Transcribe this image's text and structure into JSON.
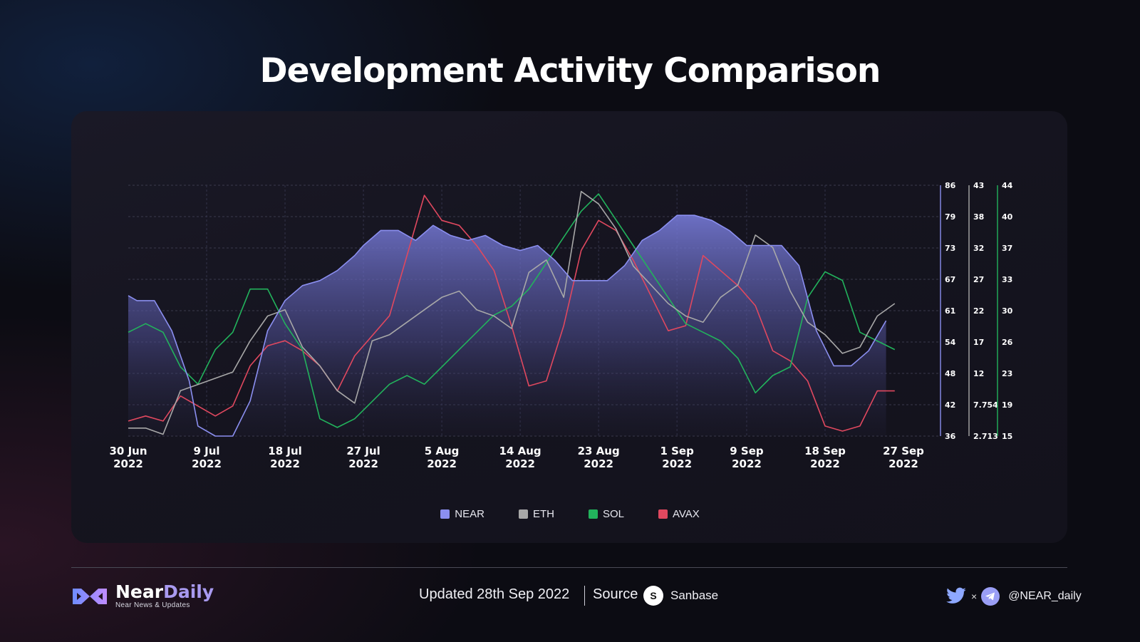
{
  "title": "Development Activity Comparison",
  "legend": [
    {
      "label": "NEAR",
      "color": "#8b8ff0"
    },
    {
      "label": "ETH",
      "color": "#a8a8a8"
    },
    {
      "label": "SOL",
      "color": "#22b35c"
    },
    {
      "label": "AVAX",
      "color": "#e0485f"
    }
  ],
  "chart_data": {
    "type": "line",
    "x_ticks": [
      {
        "date": "2022-06-30",
        "line1": "30 Jun",
        "line2": "2022"
      },
      {
        "date": "2022-07-09",
        "line1": "9 Jul",
        "line2": "2022"
      },
      {
        "date": "2022-07-18",
        "line1": "18 Jul",
        "line2": "2022"
      },
      {
        "date": "2022-07-27",
        "line1": "27 Jul",
        "line2": "2022"
      },
      {
        "date": "2022-08-05",
        "line1": "5 Aug",
        "line2": "2022"
      },
      {
        "date": "2022-08-14",
        "line1": "14 Aug",
        "line2": "2022"
      },
      {
        "date": "2022-08-23",
        "line1": "23 Aug",
        "line2": "2022"
      },
      {
        "date": "2022-09-01",
        "line1": "1 Sep",
        "line2": "2022"
      },
      {
        "date": "2022-09-09",
        "line1": "9 Sep",
        "line2": "2022"
      },
      {
        "date": "2022-09-18",
        "line1": "18 Sep",
        "line2": "2022"
      },
      {
        "date": "2022-09-27",
        "line1": "27 Sep",
        "line2": "2022"
      }
    ],
    "y_axes": [
      {
        "series": "NEAR",
        "ticks": [
          "86",
          "79",
          "73",
          "67",
          "61",
          "54",
          "48",
          "42",
          "36"
        ],
        "ylim": [
          36,
          86
        ]
      },
      {
        "series": "ETH",
        "ticks": [
          "43",
          "38",
          "32",
          "27",
          "22",
          "17",
          "12",
          "7.754",
          "2.713"
        ],
        "ylim": [
          2.713,
          43
        ]
      },
      {
        "series": "SOL",
        "ticks": [
          "44",
          "40",
          "37",
          "33",
          "30",
          "26",
          "23",
          "19",
          "15"
        ],
        "ylim": [
          15,
          44
        ]
      }
    ],
    "series": [
      {
        "name": "NEAR",
        "color": "#8b8ff0",
        "area": true,
        "x": [
          "2022-06-30",
          "2022-07-01",
          "2022-07-03",
          "2022-07-05",
          "2022-07-07",
          "2022-07-08",
          "2022-07-10",
          "2022-07-12",
          "2022-07-14",
          "2022-07-16",
          "2022-07-18",
          "2022-07-20",
          "2022-07-22",
          "2022-07-24",
          "2022-07-26",
          "2022-07-27",
          "2022-07-29",
          "2022-07-31",
          "2022-08-02",
          "2022-08-04",
          "2022-08-06",
          "2022-08-08",
          "2022-08-10",
          "2022-08-12",
          "2022-08-14",
          "2022-08-16",
          "2022-08-18",
          "2022-08-20",
          "2022-08-22",
          "2022-08-24",
          "2022-08-26",
          "2022-08-28",
          "2022-08-30",
          "2022-09-01",
          "2022-09-03",
          "2022-09-05",
          "2022-09-07",
          "2022-09-09",
          "2022-09-11",
          "2022-09-13",
          "2022-09-15",
          "2022-09-17",
          "2022-09-19",
          "2022-09-21",
          "2022-09-23",
          "2022-09-25"
        ],
        "values": [
          64,
          63,
          63,
          57,
          47,
          38,
          36,
          36,
          43,
          57,
          63,
          66,
          67,
          69,
          72,
          74,
          77,
          77,
          75,
          78,
          76,
          75,
          76,
          74,
          73,
          74,
          71,
          67,
          67,
          67,
          70,
          75,
          77,
          80,
          80,
          79,
          77,
          74,
          74,
          74,
          70,
          57,
          50,
          50,
          53,
          59
        ]
      },
      {
        "name": "ETH",
        "color": "#a8a8a8",
        "x": [
          "2022-06-30",
          "2022-07-02",
          "2022-07-04",
          "2022-07-06",
          "2022-07-08",
          "2022-07-10",
          "2022-07-12",
          "2022-07-14",
          "2022-07-16",
          "2022-07-18",
          "2022-07-20",
          "2022-07-22",
          "2022-07-24",
          "2022-07-26",
          "2022-07-28",
          "2022-07-30",
          "2022-08-01",
          "2022-08-03",
          "2022-08-05",
          "2022-08-07",
          "2022-08-09",
          "2022-08-11",
          "2022-08-13",
          "2022-08-15",
          "2022-08-17",
          "2022-08-19",
          "2022-08-21",
          "2022-08-23",
          "2022-08-25",
          "2022-08-27",
          "2022-08-29",
          "2022-08-31",
          "2022-09-02",
          "2022-09-04",
          "2022-09-06",
          "2022-09-08",
          "2022-09-10",
          "2022-09-12",
          "2022-09-14",
          "2022-09-16",
          "2022-09-18",
          "2022-09-20",
          "2022-09-22",
          "2022-09-24",
          "2022-09-26"
        ],
        "values": [
          4,
          4,
          3,
          10,
          11,
          12,
          13,
          18,
          22,
          23,
          17,
          14,
          10,
          8,
          18,
          19,
          21,
          23,
          25,
          26,
          23,
          22,
          20,
          29,
          31,
          25,
          42,
          40,
          36,
          30,
          27,
          24,
          22,
          21,
          25,
          27,
          35,
          33,
          26,
          21,
          19,
          16,
          17,
          22,
          24
        ]
      },
      {
        "name": "SOL",
        "color": "#22b35c",
        "x": [
          "2022-06-30",
          "2022-07-02",
          "2022-07-04",
          "2022-07-06",
          "2022-07-08",
          "2022-07-10",
          "2022-07-12",
          "2022-07-14",
          "2022-07-16",
          "2022-07-18",
          "2022-07-20",
          "2022-07-22",
          "2022-07-24",
          "2022-07-26",
          "2022-07-28",
          "2022-07-30",
          "2022-08-01",
          "2022-08-03",
          "2022-08-05",
          "2022-08-07",
          "2022-08-09",
          "2022-08-11",
          "2022-08-13",
          "2022-08-15",
          "2022-08-17",
          "2022-08-19",
          "2022-08-21",
          "2022-08-23",
          "2022-08-25",
          "2022-08-27",
          "2022-08-29",
          "2022-08-31",
          "2022-09-02",
          "2022-09-04",
          "2022-09-06",
          "2022-09-08",
          "2022-09-10",
          "2022-09-12",
          "2022-09-14",
          "2022-09-16",
          "2022-09-18",
          "2022-09-20",
          "2022-09-22",
          "2022-09-24",
          "2022-09-26"
        ],
        "values": [
          27,
          28,
          27,
          23,
          21,
          25,
          27,
          32,
          32,
          28,
          25,
          17,
          16,
          17,
          19,
          21,
          22,
          21,
          23,
          25,
          27,
          29,
          30,
          32,
          35,
          38,
          41,
          43,
          40,
          37,
          34,
          31,
          28,
          27,
          26,
          24,
          20,
          22,
          23,
          31,
          34,
          33,
          27,
          26,
          25
        ]
      },
      {
        "name": "AVAX",
        "color": "#e0485f",
        "x": [
          "2022-06-30",
          "2022-07-02",
          "2022-07-04",
          "2022-07-06",
          "2022-07-08",
          "2022-07-10",
          "2022-07-12",
          "2022-07-14",
          "2022-07-16",
          "2022-07-18",
          "2022-07-20",
          "2022-07-22",
          "2022-07-24",
          "2022-07-26",
          "2022-07-28",
          "2022-07-30",
          "2022-08-01",
          "2022-08-03",
          "2022-08-05",
          "2022-08-07",
          "2022-08-09",
          "2022-08-11",
          "2022-08-13",
          "2022-08-15",
          "2022-08-17",
          "2022-08-19",
          "2022-08-21",
          "2022-08-23",
          "2022-08-25",
          "2022-08-27",
          "2022-08-29",
          "2022-08-31",
          "2022-09-02",
          "2022-09-04",
          "2022-09-06",
          "2022-09-08",
          "2022-09-10",
          "2022-09-12",
          "2022-09-14",
          "2022-09-16",
          "2022-09-18",
          "2022-09-20",
          "2022-09-22",
          "2022-09-24",
          "2022-09-26"
        ],
        "values": [
          39,
          40,
          39,
          44,
          42,
          40,
          42,
          50,
          54,
          55,
          53,
          50,
          45,
          52,
          56,
          60,
          72,
          84,
          79,
          78,
          74,
          69,
          58,
          46,
          47,
          58,
          73,
          79,
          77,
          71,
          64,
          57,
          58,
          72,
          69,
          66,
          62,
          53,
          51,
          47,
          38,
          37,
          38,
          45,
          45
        ]
      }
    ]
  },
  "footer": {
    "brand_primary": "Near",
    "brand_secondary": "Daily",
    "brand_tagline": "Near News & Updates",
    "updated": "Updated 28th Sep 2022",
    "source_label": "Source",
    "source_icon": "S",
    "source_name": "Sanbase",
    "social_separator": "×",
    "handle": "@NEAR_daily"
  }
}
